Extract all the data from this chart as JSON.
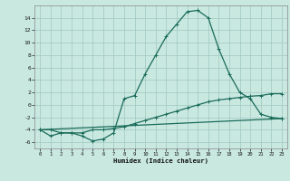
{
  "xlabel": "Humidex (Indice chaleur)",
  "bg_color": "#c8e8e0",
  "grid_color": "#a0c8c0",
  "line_color": "#1a6b5a",
  "xlim": [
    -0.5,
    23.5
  ],
  "ylim": [
    -7,
    16
  ],
  "xticks": [
    0,
    1,
    2,
    3,
    4,
    5,
    6,
    7,
    8,
    9,
    10,
    11,
    12,
    13,
    14,
    15,
    16,
    17,
    18,
    19,
    20,
    21,
    22,
    23
  ],
  "yticks": [
    -6,
    -4,
    -2,
    0,
    2,
    4,
    6,
    8,
    10,
    12,
    14
  ],
  "line1_x": [
    0,
    1,
    2,
    3,
    4,
    5,
    6,
    7,
    8,
    9,
    10,
    11,
    12,
    13,
    14,
    15,
    16,
    17,
    18,
    19,
    20,
    21,
    22,
    23
  ],
  "line1_y": [
    -4,
    -5,
    -4.5,
    -4.5,
    -5,
    -5.8,
    -5.5,
    -4.5,
    1,
    1.5,
    5,
    8,
    11,
    13,
    15,
    15.2,
    14,
    9,
    5,
    2,
    1,
    -1.5,
    -2,
    -2.2
  ],
  "line2_x": [
    0,
    1,
    2,
    3,
    4,
    5,
    6,
    7,
    8,
    9,
    10,
    11,
    12,
    13,
    14,
    15,
    16,
    17,
    18,
    19,
    20,
    21,
    22,
    23
  ],
  "line2_y": [
    -4,
    -4,
    -4.5,
    -4.5,
    -4.5,
    -4,
    -4,
    -3.8,
    -3.5,
    -3,
    -2.5,
    -2,
    -1.5,
    -1,
    -0.5,
    0,
    0.5,
    0.8,
    1.0,
    1.2,
    1.4,
    1.5,
    1.8,
    1.8
  ],
  "line3_x": [
    0,
    23
  ],
  "line3_y": [
    -4,
    -2.2
  ]
}
